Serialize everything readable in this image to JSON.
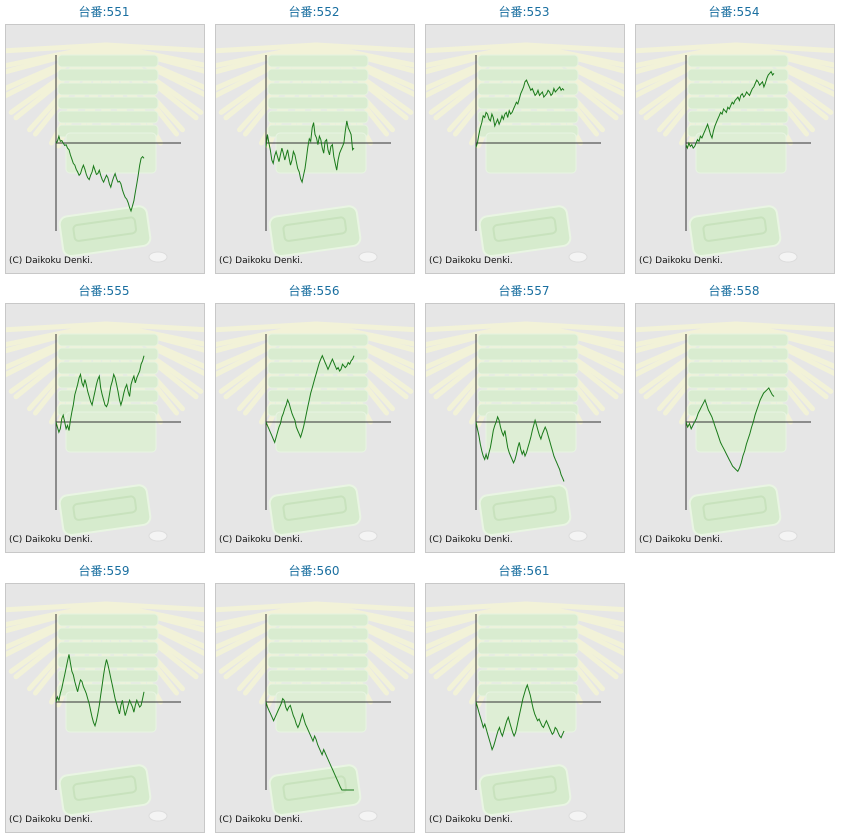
{
  "copyright": "(C) Daikoku Denki.",
  "colors": {
    "line": "#1a7a1a",
    "title": "#1a6fa0",
    "panel": "#e6e6e6",
    "axis": "#333333"
  },
  "chart_data": [
    {
      "type": "line",
      "title": "台番:551",
      "values": [
        0,
        2,
        8,
        2,
        3,
        0,
        -3,
        -2,
        -6,
        -8,
        -14,
        -19,
        -24,
        -26,
        -31,
        -34,
        -38,
        -36,
        -30,
        -26,
        -31,
        -37,
        -41,
        -43,
        -38,
        -34,
        -27,
        -32,
        -37,
        -36,
        -32,
        -38,
        -43,
        -46,
        -42,
        -38,
        -41,
        -48,
        -52,
        -45,
        -40,
        -36,
        -42,
        -46,
        -45,
        -48,
        -55,
        -60,
        -64,
        -66,
        -70,
        -76,
        -80,
        -74,
        -68,
        -58,
        -48,
        -38,
        -26,
        -18,
        -16,
        -18
      ]
    },
    {
      "type": "line",
      "title": "台番:552",
      "values": [
        -5,
        10,
        0,
        -8,
        -20,
        -24,
        -15,
        -10,
        -16,
        -22,
        -14,
        -6,
        -12,
        -20,
        -14,
        -8,
        -18,
        -26,
        -20,
        -10,
        -14,
        -22,
        -30,
        -34,
        -42,
        -46,
        -38,
        -30,
        -18,
        -5,
        5,
        2,
        18,
        24,
        10,
        6,
        -2,
        8,
        4,
        -6,
        -12,
        2,
        4,
        -8,
        -14,
        -4,
        -2,
        -16,
        -24,
        -32,
        -20,
        -12,
        -8,
        -4,
        0,
        14,
        26,
        18,
        14,
        10,
        -8,
        -6
      ]
    },
    {
      "type": "line",
      "title": "台番:553",
      "values": [
        -5,
        0,
        10,
        18,
        24,
        32,
        30,
        36,
        34,
        28,
        26,
        34,
        30,
        20,
        24,
        28,
        22,
        26,
        32,
        28,
        34,
        36,
        30,
        38,
        34,
        36,
        40,
        44,
        48,
        46,
        52,
        58,
        62,
        66,
        72,
        74,
        70,
        66,
        62,
        64,
        60,
        56,
        58,
        62,
        56,
        58,
        60,
        54,
        56,
        58,
        62,
        60,
        56,
        58,
        64,
        60,
        62,
        64,
        66,
        62,
        64,
        62
      ]
    },
    {
      "type": "line",
      "title": "台番:554",
      "values": [
        -2,
        -6,
        0,
        -4,
        -2,
        -6,
        -4,
        0,
        4,
        2,
        8,
        6,
        10,
        14,
        18,
        22,
        16,
        10,
        6,
        14,
        20,
        24,
        28,
        32,
        36,
        34,
        40,
        38,
        36,
        42,
        40,
        44,
        48,
        46,
        50,
        52,
        54,
        50,
        56,
        58,
        54,
        56,
        60,
        58,
        56,
        60,
        64,
        66,
        70,
        74,
        72,
        68,
        70,
        72,
        66,
        70,
        76,
        80,
        82,
        84,
        80,
        82
      ]
    },
    {
      "type": "line",
      "title": "台番:555",
      "values": [
        0,
        -6,
        -12,
        -8,
        4,
        8,
        0,
        -8,
        -4,
        -10,
        2,
        12,
        20,
        32,
        38,
        44,
        52,
        56,
        46,
        42,
        50,
        44,
        36,
        30,
        24,
        20,
        28,
        36,
        44,
        50,
        54,
        40,
        32,
        26,
        20,
        18,
        22,
        32,
        42,
        48,
        56,
        52,
        44,
        36,
        26,
        20,
        26,
        34,
        40,
        44,
        36,
        30,
        44,
        50,
        54,
        46,
        52,
        56,
        60,
        68,
        72,
        78
      ]
    },
    {
      "type": "line",
      "title": "台番:556",
      "values": [
        0,
        -4,
        -8,
        -12,
        -16,
        -20,
        -24,
        -18,
        -12,
        -6,
        -2,
        6,
        10,
        16,
        20,
        26,
        22,
        16,
        10,
        6,
        2,
        -6,
        -10,
        -14,
        -18,
        -12,
        -6,
        2,
        10,
        18,
        26,
        34,
        40,
        46,
        52,
        58,
        64,
        70,
        74,
        78,
        74,
        70,
        66,
        62,
        66,
        70,
        74,
        70,
        66,
        62,
        64,
        60,
        62,
        68,
        66,
        64,
        66,
        70,
        68,
        72,
        74,
        78
      ]
    },
    {
      "type": "line",
      "title": "台番:557",
      "values": [
        0,
        -8,
        -16,
        -26,
        -34,
        -40,
        -44,
        -38,
        -44,
        -36,
        -30,
        -20,
        -10,
        -4,
        0,
        6,
        2,
        -6,
        -12,
        -16,
        -10,
        -20,
        -30,
        -36,
        -40,
        -44,
        -48,
        -44,
        -38,
        -30,
        -24,
        -32,
        -38,
        -34,
        -40,
        -36,
        -30,
        -24,
        -18,
        -10,
        -4,
        2,
        -4,
        -10,
        -16,
        -20,
        -14,
        -10,
        -6,
        -10,
        -16,
        -22,
        -28,
        -34,
        -40,
        -44,
        -48,
        -52,
        -56,
        -62,
        -66,
        -70
      ]
    },
    {
      "type": "line",
      "title": "台番:558",
      "values": [
        0,
        -6,
        -2,
        -8,
        -4,
        0,
        4,
        10,
        14,
        18,
        22,
        26,
        20,
        14,
        10,
        6,
        0,
        -6,
        -12,
        -18,
        -24,
        -28,
        -32,
        -36,
        -40,
        -44,
        -48,
        -52,
        -54,
        -56,
        -58,
        -54,
        -48,
        -40,
        -34,
        -26,
        -20,
        -14,
        -6,
        0,
        8,
        14,
        20,
        26,
        30,
        34,
        36,
        38,
        40,
        36,
        32,
        30
      ]
    },
    {
      "type": "line",
      "title": "台番:559",
      "values": [
        0,
        6,
        2,
        10,
        16,
        24,
        32,
        40,
        48,
        56,
        46,
        36,
        32,
        24,
        18,
        12,
        20,
        26,
        24,
        18,
        14,
        10,
        4,
        -2,
        -10,
        -18,
        -24,
        -28,
        -22,
        -14,
        -4,
        8,
        20,
        32,
        42,
        50,
        44,
        36,
        28,
        20,
        12,
        4,
        -2,
        -8,
        -14,
        -4,
        2,
        -8,
        -16,
        -10,
        -4,
        2,
        -2,
        -6,
        -12,
        -4,
        2,
        -2,
        -6,
        -4,
        4,
        12
      ]
    },
    {
      "type": "line",
      "title": "台番:560",
      "values": [
        0,
        -6,
        -10,
        -14,
        -18,
        -22,
        -18,
        -14,
        -10,
        -6,
        -2,
        4,
        2,
        -6,
        -10,
        -6,
        -4,
        -10,
        -16,
        -20,
        -26,
        -30,
        -26,
        -20,
        -14,
        -20,
        -26,
        -30,
        -34,
        -38,
        -42,
        -46,
        -40,
        -44,
        -50,
        -54,
        -58,
        -62,
        -56,
        -60,
        -64,
        -68,
        -72,
        -76,
        -80,
        -84,
        -88,
        -92,
        -96,
        -100,
        -104,
        -108,
        -112,
        -116,
        -120,
        -118,
        -122,
        -124,
        -126
      ]
    },
    {
      "type": "line",
      "title": "台番:561",
      "values": [
        0,
        -6,
        -12,
        -18,
        -24,
        -30,
        -26,
        -32,
        -38,
        -44,
        -50,
        -56,
        -52,
        -46,
        -40,
        -34,
        -30,
        -36,
        -40,
        -34,
        -28,
        -22,
        -18,
        -24,
        -30,
        -36,
        -40,
        -36,
        -28,
        -20,
        -12,
        -4,
        4,
        10,
        16,
        20,
        14,
        8,
        0,
        -8,
        -14,
        -18,
        -22,
        -20,
        -24,
        -28,
        -30,
        -26,
        -22,
        -26,
        -30,
        -34,
        -38,
        -36,
        -30,
        -32,
        -36,
        -40,
        -42,
        -38,
        -34
      ]
    }
  ]
}
